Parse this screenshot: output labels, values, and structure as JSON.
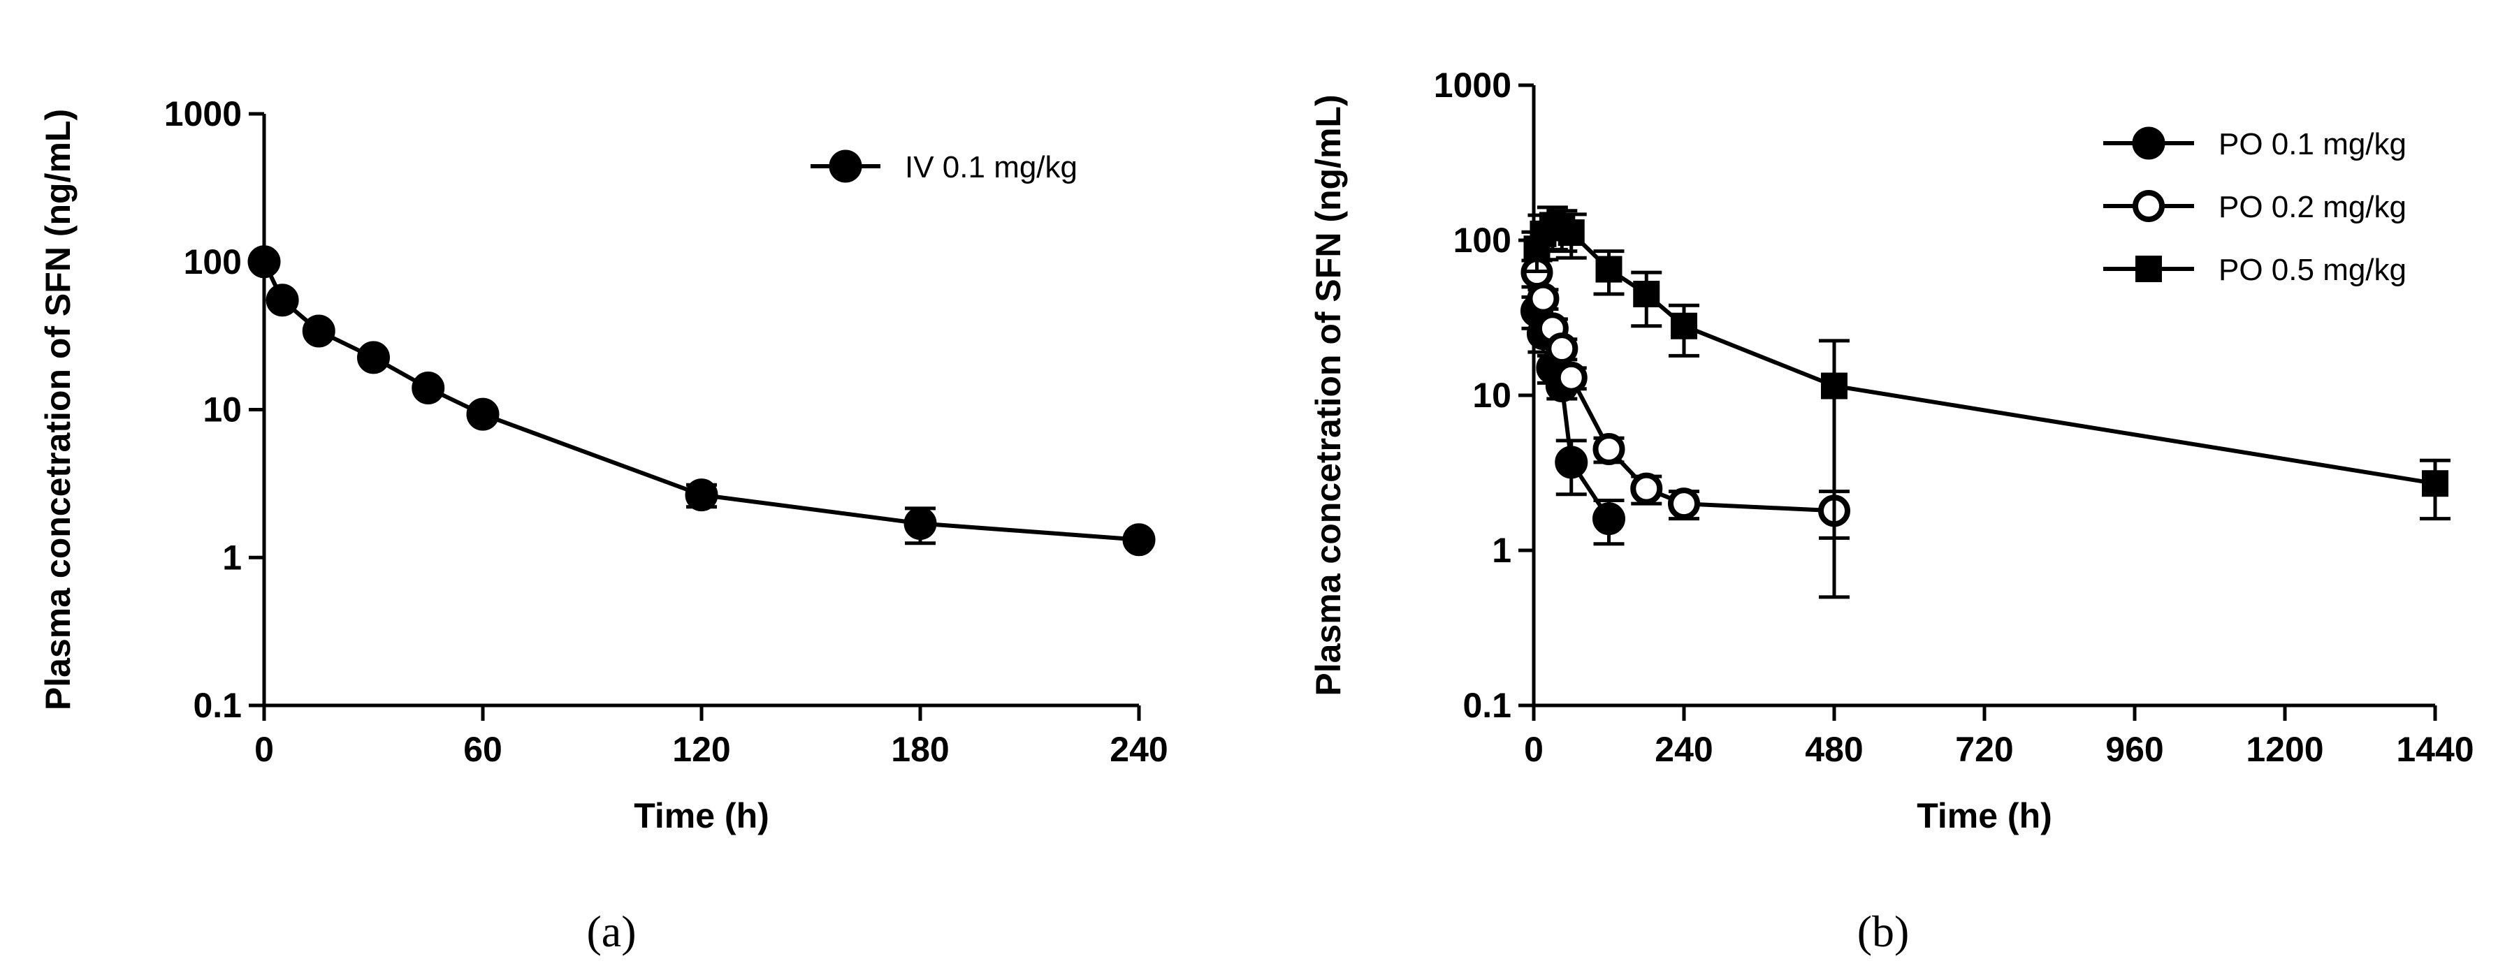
{
  "colors": {
    "ink": "#000000",
    "background": "#ffffff"
  },
  "chart_data": [
    {
      "panel": "a",
      "type": "line",
      "yscale": "log",
      "xlabel": "Time (h)",
      "ylabel": "Plasma concetration of SFN (ng/mL)",
      "xlim": [
        0,
        240
      ],
      "ylim": [
        0.1,
        1000
      ],
      "xticks": [
        0,
        60,
        120,
        180,
        240
      ],
      "xtick_labels": [
        "0",
        "60",
        "120",
        "180",
        "240"
      ],
      "yticks": [
        0.1,
        1,
        10,
        100,
        1000
      ],
      "ytick_labels": [
        "0.1",
        "1",
        "10",
        "100",
        "1000"
      ],
      "legend": {
        "position": "top-right"
      },
      "series": [
        {
          "name": "IV 0.1 mg/kg",
          "marker": "filled-circle",
          "x": [
            0,
            5,
            15,
            30,
            45,
            60,
            120,
            180,
            240
          ],
          "y": [
            100,
            55,
            34,
            22.5,
            14,
            9.3,
            2.65,
            1.7,
            1.32
          ],
          "err": [
            0,
            0,
            0,
            0,
            0,
            0,
            0.45,
            0.45,
            0.08
          ]
        }
      ]
    },
    {
      "panel": "b",
      "type": "line",
      "yscale": "log",
      "xlabel": "Time (h)",
      "ylabel": "Plasma concetration of SFN (ng/mL)",
      "xlim": [
        0,
        1440
      ],
      "ylim": [
        0.1,
        1000
      ],
      "xticks": [
        0,
        240,
        480,
        720,
        960,
        1200,
        1440
      ],
      "xtick_labels": [
        "0",
        "240",
        "480",
        "720",
        "960",
        "1200",
        "1440"
      ],
      "yticks": [
        0.1,
        1,
        10,
        100,
        1000
      ],
      "ytick_labels": [
        "0.1",
        "1",
        "10",
        "100",
        "1000"
      ],
      "legend": {
        "position": "top-right"
      },
      "series": [
        {
          "name": "PO 0.1 mg/kg",
          "marker": "filled-circle",
          "x": [
            5,
            15,
            30,
            45,
            60,
            120
          ],
          "y": [
            35,
            25,
            15,
            11.5,
            3.7,
            1.6
          ],
          "err": [
            8,
            6,
            3,
            2,
            1.4,
            0.5
          ]
        },
        {
          "name": "PO 0.2 mg/kg",
          "marker": "open-circle",
          "x": [
            5,
            15,
            30,
            45,
            60,
            120,
            180,
            240,
            480
          ],
          "y": [
            62,
            42,
            27,
            20,
            13,
            4.5,
            2.5,
            2.0,
            1.8
          ],
          "err": [
            12,
            6,
            4,
            3,
            2,
            0.8,
            0.5,
            0.4,
            0.6
          ]
        },
        {
          "name": "PO 0.5 mg/kg",
          "marker": "filled-square",
          "x": [
            5,
            15,
            30,
            45,
            60,
            120,
            180,
            240,
            480,
            1440
          ],
          "y": [
            88,
            110,
            125,
            120,
            112,
            65,
            45,
            28,
            11.5,
            2.7
          ],
          "err": [
            25,
            35,
            38,
            35,
            35,
            20,
            17,
            10,
            11,
            1.1
          ]
        }
      ]
    }
  ],
  "panel_labels": [
    "(a)",
    "(b)"
  ]
}
